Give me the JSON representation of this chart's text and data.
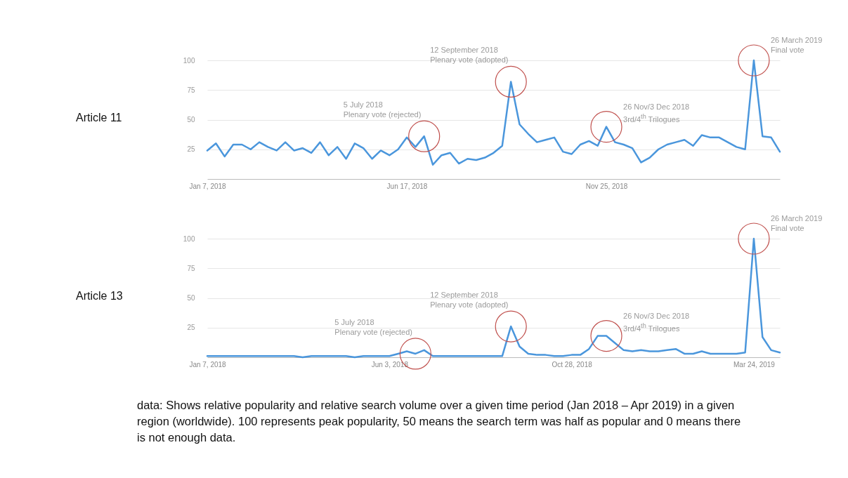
{
  "chart_data": [
    {
      "type": "line",
      "title": "Article 11",
      "x": [
        "2018-01-07",
        "2018-01-14",
        "2018-01-21",
        "2018-01-28",
        "2018-02-04",
        "2018-02-11",
        "2018-02-18",
        "2018-02-25",
        "2018-03-04",
        "2018-03-11",
        "2018-03-18",
        "2018-03-25",
        "2018-04-01",
        "2018-04-08",
        "2018-04-15",
        "2018-04-22",
        "2018-04-29",
        "2018-05-06",
        "2018-05-13",
        "2018-05-20",
        "2018-05-27",
        "2018-06-03",
        "2018-06-10",
        "2018-06-17",
        "2018-06-24",
        "2018-07-01",
        "2018-07-08",
        "2018-07-15",
        "2018-07-22",
        "2018-07-29",
        "2018-08-05",
        "2018-08-12",
        "2018-08-19",
        "2018-08-26",
        "2018-09-02",
        "2018-09-09",
        "2018-09-16",
        "2018-09-23",
        "2018-09-30",
        "2018-10-07",
        "2018-10-14",
        "2018-10-21",
        "2018-10-28",
        "2018-11-04",
        "2018-11-11",
        "2018-11-18",
        "2018-11-25",
        "2018-12-02",
        "2018-12-09",
        "2018-12-16",
        "2018-12-23",
        "2018-12-30",
        "2019-01-06",
        "2019-01-13",
        "2019-01-20",
        "2019-01-27",
        "2019-02-03",
        "2019-02-10",
        "2019-02-17",
        "2019-02-24",
        "2019-03-03",
        "2019-03-10",
        "2019-03-17",
        "2019-03-24",
        "2019-03-31",
        "2019-04-07",
        "2019-04-14"
      ],
      "series": [
        {
          "color": "#4a96dc",
          "values": [
            24,
            30,
            19,
            29,
            29,
            25,
            31,
            27,
            24,
            31,
            24,
            26,
            22,
            31,
            20,
            27,
            17,
            30,
            26,
            17,
            24,
            20,
            25,
            35,
            27,
            36,
            12,
            20,
            22,
            13,
            17,
            16,
            18,
            22,
            28,
            82,
            46,
            38,
            31,
            33,
            35,
            23,
            21,
            29,
            32,
            28,
            44,
            31,
            29,
            26,
            14,
            18,
            25,
            29,
            31,
            33,
            28,
            37,
            35,
            35,
            31,
            27,
            25,
            100,
            36,
            35,
            23
          ]
        }
      ],
      "xlim": [
        "2018-01-07",
        "2019-04-14"
      ],
      "xticks": [
        {
          "value": "2018-01-07",
          "label": "Jan 7, 2018"
        },
        {
          "value": "2018-06-17",
          "label": "Jun 17, 2018"
        },
        {
          "value": "2018-11-25",
          "label": "Nov 25, 2018"
        }
      ],
      "ylim": [
        0,
        100
      ],
      "yticks": [
        25,
        50,
        75,
        100
      ],
      "grid": "y",
      "annotations": [
        {
          "text": "5 July 2018\nPlenary vote (rejected)",
          "x": "2018-07-01",
          "y": 36
        },
        {
          "text": "12 September 2018\nPlenary vote (adopted)",
          "x": "2018-09-09",
          "y": 82
        },
        {
          "text": "26 Nov/3 Dec 2018\n3rd/4$^{th}$ Trilogues",
          "x": "2018-11-25",
          "y": 44
        },
        {
          "text": "26 March 2019\nFinal vote",
          "x": "2019-03-24",
          "y": 100
        }
      ]
    },
    {
      "type": "line",
      "title": "Article 13",
      "x": [
        "2018-01-07",
        "2018-01-14",
        "2018-01-21",
        "2018-01-28",
        "2018-02-04",
        "2018-02-11",
        "2018-02-18",
        "2018-02-25",
        "2018-03-04",
        "2018-03-11",
        "2018-03-18",
        "2018-03-25",
        "2018-04-01",
        "2018-04-08",
        "2018-04-15",
        "2018-04-22",
        "2018-04-29",
        "2018-05-06",
        "2018-05-13",
        "2018-05-20",
        "2018-05-27",
        "2018-06-03",
        "2018-06-10",
        "2018-06-17",
        "2018-06-24",
        "2018-07-01",
        "2018-07-08",
        "2018-07-15",
        "2018-07-22",
        "2018-07-29",
        "2018-08-05",
        "2018-08-12",
        "2018-08-19",
        "2018-08-26",
        "2018-09-02",
        "2018-09-09",
        "2018-09-16",
        "2018-09-23",
        "2018-09-30",
        "2018-10-07",
        "2018-10-14",
        "2018-10-21",
        "2018-10-28",
        "2018-11-04",
        "2018-11-11",
        "2018-11-18",
        "2018-11-25",
        "2018-12-02",
        "2018-12-09",
        "2018-12-16",
        "2018-12-23",
        "2018-12-30",
        "2019-01-06",
        "2019-01-13",
        "2019-01-20",
        "2019-01-27",
        "2019-02-03",
        "2019-02-10",
        "2019-02-17",
        "2019-02-24",
        "2019-03-03",
        "2019-03-10",
        "2019-03-17",
        "2019-03-24",
        "2019-03-31",
        "2019-04-07",
        "2019-04-14"
      ],
      "series": [
        {
          "color": "#4a96dc",
          "values": [
            1,
            1,
            1,
            1,
            1,
            1,
            1,
            1,
            1,
            1,
            1,
            0,
            1,
            1,
            1,
            1,
            1,
            0,
            1,
            1,
            1,
            1,
            3,
            5,
            3,
            6,
            1,
            1,
            1,
            1,
            1,
            1,
            1,
            1,
            1,
            26,
            9,
            3,
            2,
            2,
            1,
            1,
            2,
            2,
            7,
            18,
            18,
            12,
            6,
            5,
            6,
            5,
            5,
            6,
            7,
            3,
            3,
            5,
            3,
            3,
            3,
            3,
            4,
            100,
            17,
            6,
            4
          ]
        }
      ],
      "xlim": [
        "2018-01-07",
        "2019-04-14"
      ],
      "xticks": [
        {
          "value": "2018-01-07",
          "label": "Jan 7, 2018"
        },
        {
          "value": "2018-06-03",
          "label": "Jun 3, 2018"
        },
        {
          "value": "2018-10-28",
          "label": "Oct 28, 2018"
        },
        {
          "value": "2019-03-24",
          "label": "Mar 24, 2019"
        }
      ],
      "ylim": [
        0,
        100
      ],
      "yticks": [
        25,
        50,
        75,
        100
      ],
      "grid": "y",
      "annotations": [
        {
          "text": "5 July 2018\nPlenary vote (rejected)",
          "x": "2018-06-24",
          "y": 3
        },
        {
          "text": "12 September 2018\nPlenary vote (adopted)",
          "x": "2018-09-09",
          "y": 26
        },
        {
          "text": "26 Nov/3 Dec 2018\n3rd/4$^{th}$ Trilogues",
          "x": "2018-11-25",
          "y": 18
        },
        {
          "text": "26 March 2019\nFinal vote",
          "x": "2019-03-24",
          "y": 100
        },
        "data: Shows relative popularity and relative search volume over a given time period (Jan 2018 – Apr 2019) in a given region (worldwide). 100 represents peak popularity, 50 means the search term was half as popular and 0 means there is not enough data."
      ]
    }
  ]
}
